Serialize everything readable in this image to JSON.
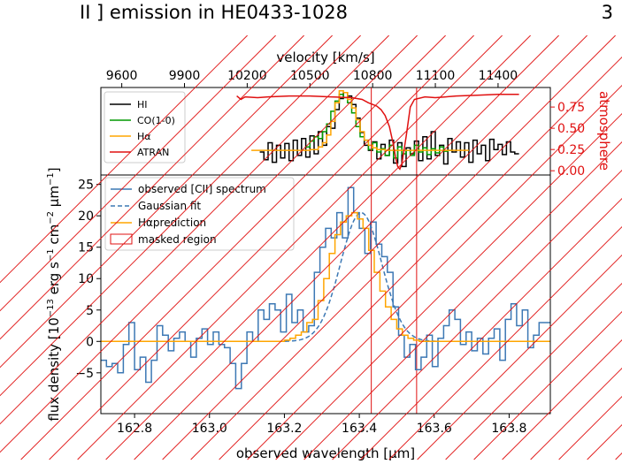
{
  "header": {
    "title": "II ] emission in HE0433-1028",
    "page_number": "3"
  },
  "colors": {
    "hi": "#000000",
    "co": "#009900",
    "halpha": "#FFA500",
    "atran": "#E01010",
    "cii": "#3C78B4",
    "gauss": "#3C78B4",
    "mask": "#E01010"
  },
  "chart_data": [
    {
      "type": "line",
      "panel": "top",
      "title": "",
      "xlabel": "velocity [km/s]",
      "x_ticks": [
        "9600",
        "9900",
        "10200",
        "10500",
        "10800",
        "11100",
        "11400"
      ],
      "xlim": [
        9500,
        11650
      ],
      "ylabel_right": "atmosphere",
      "right_ticks": [
        "0.00",
        "0.25",
        "0.50",
        "0.75"
      ],
      "ylim": [
        -0.05,
        0.98
      ],
      "legend_position": "upper left",
      "series": [
        {
          "name": "HI",
          "color": "#000000",
          "step": true,
          "x": [
            10260,
            10280,
            10300,
            10320,
            10340,
            10360,
            10380,
            10400,
            10420,
            10440,
            10460,
            10480,
            10500,
            10520,
            10540,
            10560,
            10580,
            10600,
            10620,
            10640,
            10660,
            10680,
            10700,
            10720,
            10740,
            10760,
            10780,
            10800,
            10820,
            10840,
            10860,
            10880,
            10900,
            10920,
            10940,
            10960,
            10980,
            11000,
            11020,
            11040,
            11060,
            11080,
            11100,
            11120,
            11140,
            11160,
            11180,
            11200,
            11220,
            11240,
            11260,
            11280,
            11300,
            11320,
            11340,
            11360,
            11380,
            11400,
            11420,
            11440,
            11460,
            11480
          ],
          "y": [
            0.22,
            0.13,
            0.33,
            0.1,
            0.3,
            0.15,
            0.32,
            0.12,
            0.36,
            0.18,
            0.38,
            0.16,
            0.41,
            0.2,
            0.46,
            0.3,
            0.52,
            0.5,
            0.72,
            0.85,
            0.92,
            0.88,
            0.78,
            0.62,
            0.45,
            0.3,
            0.24,
            0.34,
            0.14,
            0.31,
            0.18,
            0.36,
            0.09,
            0.33,
            0.05,
            0.27,
            0.2,
            0.35,
            0.12,
            0.4,
            0.14,
            0.46,
            0.18,
            0.3,
            0.08,
            0.38,
            0.22,
            0.34,
            0.16,
            0.33,
            0.1,
            0.36,
            0.2,
            0.3,
            0.12,
            0.37,
            0.25,
            0.31,
            0.19,
            0.34,
            0.22,
            0.2
          ]
        },
        {
          "name": "CO(1-0)",
          "color": "#009900",
          "step": true,
          "x": [
            10480,
            10500,
            10520,
            10540,
            10560,
            10580,
            10600,
            10620,
            10640,
            10660,
            10680,
            10700,
            10720,
            10740,
            10760,
            10780,
            10800,
            10820,
            10840,
            10860,
            10880,
            10900,
            10920,
            10940,
            10960,
            10980,
            11000,
            11020,
            11040,
            11060,
            11080,
            11100,
            11120,
            11140,
            11160
          ],
          "y": [
            0.28,
            0.35,
            0.4,
            0.38,
            0.46,
            0.55,
            0.7,
            0.82,
            0.9,
            0.86,
            0.8,
            0.68,
            0.52,
            0.4,
            0.36,
            0.25,
            0.33,
            0.22,
            0.26,
            0.18,
            0.3,
            0.15,
            0.28,
            0.2,
            0.24,
            0.18,
            0.3,
            0.22,
            0.27,
            0.19,
            0.26,
            0.21,
            0.28,
            0.23,
            0.24
          ]
        },
        {
          "name": "Hα",
          "color": "#FFA500",
          "step": true,
          "x": [
            10220,
            10260,
            10300,
            10340,
            10380,
            10420,
            10460,
            10500,
            10540,
            10560,
            10580,
            10600,
            10620,
            10640,
            10660,
            10680,
            10700,
            10720,
            10740,
            10760,
            10780,
            10800,
            10820,
            10860,
            10900,
            10940,
            10980,
            11020,
            11060,
            11100,
            11140,
            11180,
            11220
          ],
          "y": [
            0.24,
            0.24,
            0.24,
            0.24,
            0.24,
            0.24,
            0.24,
            0.25,
            0.28,
            0.33,
            0.42,
            0.58,
            0.8,
            0.94,
            0.92,
            0.84,
            0.74,
            0.6,
            0.46,
            0.36,
            0.3,
            0.27,
            0.25,
            0.24,
            0.24,
            0.24,
            0.24,
            0.24,
            0.24,
            0.24,
            0.24,
            0.24,
            0.24
          ]
        },
        {
          "name": "ATRAN",
          "color": "#E01010",
          "step": false,
          "x": [
            10150,
            10170,
            10190,
            10250,
            10300,
            10400,
            10500,
            10600,
            10700,
            10750,
            10780,
            10800,
            10820,
            10840,
            10860,
            10880,
            10900,
            10910,
            10920,
            10930,
            10940,
            10960,
            10980,
            11000,
            11050,
            11100,
            11150,
            11200,
            11300,
            11400,
            11500
          ],
          "y": [
            0.88,
            0.84,
            0.87,
            0.86,
            0.87,
            0.88,
            0.88,
            0.87,
            0.86,
            0.84,
            0.8,
            0.78,
            0.76,
            0.72,
            0.65,
            0.52,
            0.3,
            0.15,
            0.05,
            0.02,
            0.08,
            0.4,
            0.75,
            0.84,
            0.87,
            0.86,
            0.87,
            0.88,
            0.89,
            0.9,
            0.9
          ]
        }
      ]
    },
    {
      "type": "line",
      "panel": "bottom",
      "title": "",
      "xlabel": "observed wavelength [μm]",
      "ylabel": "flux density [10^-13 erg s^-1 cm^-2 μm^-1]",
      "ylabel_parts": {
        "base": "flux density [10",
        "exp1": "−13",
        "mid1": " erg s",
        "exp2": "−1",
        "mid2": " cm",
        "exp3": "−2",
        "mid3": " μm",
        "exp4": "−1",
        "end": "]"
      },
      "x_ticks": [
        "162.8",
        "163.0",
        "163.2",
        "163.4",
        "163.6",
        "163.8"
      ],
      "y_ticks": [
        "−5",
        "0",
        "5",
        "10",
        "15",
        "20",
        "25"
      ],
      "xlim": [
        162.71,
        163.91
      ],
      "ylim": [
        -11.5,
        26.5
      ],
      "legend_position": "upper left",
      "series": [
        {
          "name": "observed [CII] spectrum",
          "color": "#3C78B4",
          "step": true,
          "x": [
            162.71,
            162.725,
            162.74,
            162.755,
            162.77,
            162.785,
            162.8,
            162.815,
            162.83,
            162.845,
            162.86,
            162.875,
            162.89,
            162.905,
            162.92,
            162.935,
            162.95,
            162.965,
            162.98,
            162.995,
            163.01,
            163.025,
            163.04,
            163.055,
            163.07,
            163.085,
            163.1,
            163.115,
            163.13,
            163.145,
            163.16,
            163.175,
            163.19,
            163.205,
            163.22,
            163.235,
            163.25,
            163.265,
            163.28,
            163.295,
            163.31,
            163.325,
            163.34,
            163.355,
            163.37,
            163.385,
            163.4,
            163.415,
            163.43,
            163.445,
            163.46,
            163.475,
            163.49,
            163.505,
            163.52,
            163.535,
            163.55,
            163.565,
            163.58,
            163.595,
            163.61,
            163.625,
            163.64,
            163.655,
            163.67,
            163.685,
            163.7,
            163.715,
            163.73,
            163.745,
            163.76,
            163.775,
            163.79,
            163.805,
            163.82,
            163.835,
            163.85,
            163.865,
            163.88,
            163.895
          ],
          "y": [
            -3.0,
            -4.0,
            -3.5,
            -5.0,
            -0.5,
            3.0,
            -4.5,
            -2.5,
            -6.5,
            -3.0,
            2.5,
            1.0,
            -1.5,
            0.5,
            1.5,
            0.0,
            -2.5,
            0.5,
            2.0,
            -0.5,
            1.5,
            -0.5,
            -1.0,
            -3.5,
            -7.5,
            -3.5,
            1.5,
            0.0,
            5.0,
            3.5,
            6.0,
            5.0,
            1.5,
            7.5,
            3.0,
            5.0,
            1.5,
            2.5,
            11.0,
            15.0,
            18.0,
            16.5,
            20.5,
            16.5,
            24.5,
            20.5,
            18.0,
            14.0,
            19.0,
            15.5,
            13.5,
            11.0,
            5.5,
            1.0,
            -2.5,
            -0.5,
            -4.5,
            -2.5,
            1.0,
            -4.0,
            0.5,
            2.5,
            5.0,
            3.5,
            -0.5,
            1.5,
            -1.5,
            0.5,
            -2.0,
            0.5,
            2.0,
            -3.0,
            3.5,
            6.0,
            2.5,
            5.0,
            -1.0,
            1.0,
            3.0,
            3.0
          ]
        },
        {
          "name": "Gaussian fit",
          "color": "#3C78B4",
          "dashed": true,
          "gaussian": {
            "amplitude": 20.5,
            "center": 163.405,
            "sigma": 0.055
          },
          "x_range": [
            162.71,
            163.91
          ]
        },
        {
          "name": "Hαprediction",
          "color": "#FFA500",
          "step": true,
          "x": [
            162.71,
            162.8,
            162.9,
            163.0,
            163.1,
            163.15,
            163.2,
            163.215,
            163.23,
            163.245,
            163.26,
            163.275,
            163.29,
            163.305,
            163.32,
            163.335,
            163.35,
            163.365,
            163.38,
            163.395,
            163.41,
            163.425,
            163.44,
            163.455,
            163.47,
            163.485,
            163.5,
            163.515,
            163.53,
            163.545,
            163.56,
            163.6,
            163.7,
            163.8,
            163.91
          ],
          "y": [
            0.0,
            0.0,
            0.0,
            0.0,
            0.0,
            0.0,
            0.2,
            0.5,
            1.0,
            1.5,
            3.0,
            3.5,
            6.5,
            10.0,
            14.0,
            17.0,
            19.0,
            20.0,
            20.5,
            19.5,
            18.0,
            14.5,
            11.0,
            8.0,
            5.5,
            3.5,
            2.0,
            1.0,
            0.5,
            0.2,
            0.0,
            0.0,
            0.0,
            0.0,
            0.0
          ]
        }
      ],
      "masked_region": {
        "label": "masked region",
        "x_range": [
          163.432,
          163.553
        ],
        "color": "#E01010"
      }
    }
  ]
}
